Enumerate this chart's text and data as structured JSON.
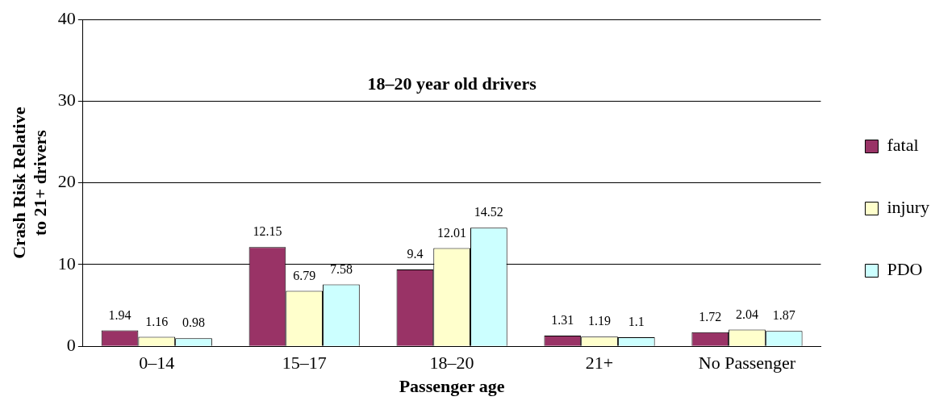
{
  "chart_data": {
    "type": "bar",
    "title": "18–20 year old drivers",
    "xlabel": "Passenger age",
    "ylabel": "Crash Risk Relative to 21+ drivers",
    "categories": [
      "0–14",
      "15–17",
      "18–20",
      "21+",
      "No Passenger"
    ],
    "series": [
      {
        "name": "fatal",
        "color": "#993366",
        "values": [
          1.94,
          12.15,
          9.4,
          1.31,
          1.72
        ]
      },
      {
        "name": "injury",
        "color": "#ffffcc",
        "values": [
          1.16,
          6.79,
          12.01,
          1.19,
          2.04
        ]
      },
      {
        "name": "PDO",
        "color": "#ccffff",
        "values": [
          0.98,
          7.58,
          14.52,
          1.1,
          1.87
        ]
      }
    ],
    "ylim": [
      0,
      40
    ],
    "yticks": [
      0,
      10,
      20,
      30,
      40
    ],
    "grid": "y",
    "legend": "right",
    "data_labels": true
  }
}
